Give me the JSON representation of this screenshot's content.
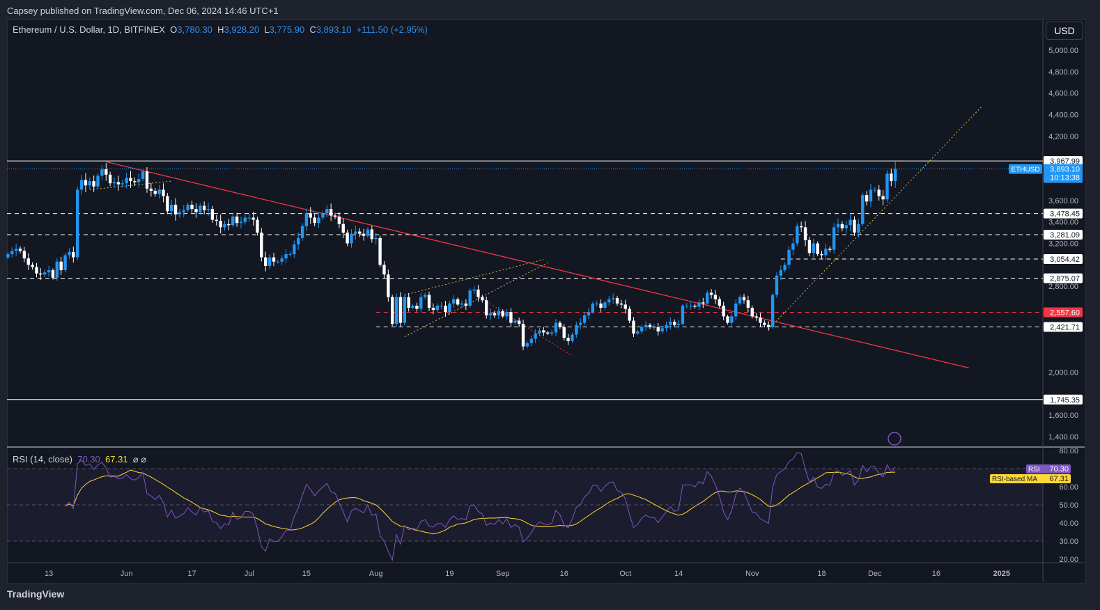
{
  "published": "Capsey published on TradingView.com, Dec 06, 2024 14:46 UTC+1",
  "legend": {
    "symbol": "Ethereum / U.S. Dollar, 1D, BITFINEX",
    "o_label": "O",
    "o": "3,780.30",
    "h_label": "H",
    "h": "3,928.20",
    "l_label": "L",
    "l": "3,775.90",
    "c_label": "C",
    "c": "3,893.10",
    "change": "+111.50 (+2.95%)"
  },
  "currency_button": "USD",
  "rsi_legend": {
    "title": "RSI (14, close)",
    "rsi": "70.30",
    "ma": "67.31",
    "icons": "⌀ ⌀"
  },
  "footer": "TradingView",
  "chart_data": {
    "type": "candlestick",
    "x_range": [
      "2024-05-03",
      "2024-12-06"
    ],
    "closes": [
      3100,
      3130,
      3150,
      3130,
      3060,
      3000,
      2980,
      2920,
      2910,
      2930,
      2950,
      2880,
      3030,
      2950,
      3090,
      3120,
      3070,
      3700,
      3790,
      3740,
      3780,
      3730,
      3830,
      3890,
      3840,
      3760,
      3770,
      3750,
      3760,
      3810,
      3780,
      3770,
      3800,
      3870,
      3710,
      3690,
      3660,
      3700,
      3640,
      3500,
      3560,
      3470,
      3490,
      3510,
      3560,
      3520,
      3490,
      3550,
      3510,
      3520,
      3420,
      3410,
      3350,
      3380,
      3370,
      3450,
      3390,
      3400,
      3440,
      3440,
      3420,
      3300,
      3070,
      2990,
      3070,
      3030,
      3030,
      3060,
      3100,
      3100,
      3190,
      3250,
      3360,
      3480,
      3440,
      3390,
      3440,
      3480,
      3520,
      3460,
      3450,
      3380,
      3300,
      3200,
      3290,
      3310,
      3290,
      3270,
      3330,
      3240,
      3250,
      3000,
      2910,
      2700,
      2450,
      2700,
      2460,
      2700,
      2600,
      2620,
      2590,
      2700,
      2720,
      2600,
      2580,
      2620,
      2620,
      2560,
      2640,
      2680,
      2630,
      2640,
      2620,
      2760,
      2770,
      2700,
      2670,
      2530,
      2550,
      2530,
      2570,
      2520,
      2560,
      2460,
      2480,
      2450,
      2240,
      2270,
      2310,
      2360,
      2390,
      2370,
      2360,
      2370,
      2460,
      2420,
      2320,
      2290,
      2350,
      2440,
      2460,
      2530,
      2560,
      2640,
      2640,
      2600,
      2650,
      2680,
      2690,
      2640,
      2630,
      2590,
      2480,
      2360,
      2380,
      2420,
      2440,
      2420,
      2420,
      2380,
      2410,
      2440,
      2470,
      2440,
      2450,
      2620,
      2620,
      2620,
      2610,
      2650,
      2640,
      2740,
      2720,
      2680,
      2620,
      2520,
      2460,
      2520,
      2640,
      2700,
      2670,
      2600,
      2520,
      2510,
      2460,
      2440,
      2420,
      2720,
      2900,
      2950,
      3000,
      3140,
      3200,
      3360,
      3350,
      3230,
      3110,
      3200,
      3100,
      3090,
      3150,
      3140,
      3350,
      3380,
      3340,
      3370,
      3420,
      3300,
      3380,
      3650,
      3590,
      3700,
      3700,
      3640,
      3610,
      3850,
      3780,
      3893.1
    ],
    "y_ticks": [
      "5,000.00",
      "4,800.00",
      "4,600.00",
      "4,400.00",
      "4,200.00",
      "3,600.00",
      "3,400.00",
      "3,200.00",
      "2,800.00",
      "2,000.00",
      "1,600.00",
      "1,400.00"
    ],
    "y_tick_values": [
      5000,
      4800,
      4600,
      4400,
      4200,
      3600,
      3400,
      3200,
      2800,
      2000,
      1600,
      1400
    ],
    "x_ticks": [
      {
        "d": "2024-05-13",
        "t": "13"
      },
      {
        "d": "2024-06-01",
        "t": "Jun"
      },
      {
        "d": "2024-06-17",
        "t": "17"
      },
      {
        "d": "2024-07-01",
        "t": "Jul"
      },
      {
        "d": "2024-07-15",
        "t": "15"
      },
      {
        "d": "2024-08-01",
        "t": "Aug"
      },
      {
        "d": "2024-08-19",
        "t": "19"
      },
      {
        "d": "2024-09-01",
        "t": "Sep"
      },
      {
        "d": "2024-09-16",
        "t": "16"
      },
      {
        "d": "2024-10-01",
        "t": "Oct"
      },
      {
        "d": "2024-10-14",
        "t": "14"
      },
      {
        "d": "2024-11-01",
        "t": "Nov"
      },
      {
        "d": "2024-11-18",
        "t": "18"
      },
      {
        "d": "2024-12-01",
        "t": "Dec"
      },
      {
        "d": "2024-12-16",
        "t": "16"
      },
      {
        "d": "2025-01-01",
        "t": "2025"
      }
    ],
    "levels": [
      {
        "price": 3967.99,
        "label": "3,967.99",
        "style": "solid",
        "color": "#ffffff"
      },
      {
        "price": 3478.45,
        "label": "3,478.45",
        "style": "dashed",
        "color": "#ffffff"
      },
      {
        "price": 3281.09,
        "label": "3,281.09",
        "style": "dashed",
        "color": "#ffffff"
      },
      {
        "price": 3054.42,
        "label": "3,054.42",
        "style": "dashed",
        "color": "#ffffff",
        "from": "2024-11-08"
      },
      {
        "price": 2875.07,
        "label": "2,875.07",
        "style": "dashed",
        "color": "#ffffff"
      },
      {
        "price": 2557.6,
        "label": "2,557.60",
        "style": "dashed",
        "color": "#f23645",
        "from": "2024-08-01"
      },
      {
        "price": 2421.71,
        "label": "2,421.71",
        "style": "dashed",
        "color": "#ffffff",
        "from": "2024-08-01"
      },
      {
        "price": 1745.35,
        "label": "1,745.35",
        "style": "solid",
        "color": "#ffffff"
      }
    ],
    "last_price": {
      "symbol": "ETHUSD",
      "price": 3893.1,
      "label": "3,893.10",
      "countdown": "10:13:38",
      "color": "#2196f3"
    },
    "trendlines": [
      {
        "from": [
          "2024-05-27",
          3960
        ],
        "to": [
          "2024-12-24",
          2040
        ],
        "color": "#f23645",
        "style": "solid"
      },
      {
        "from": [
          "2024-05-23",
          3700
        ],
        "to": [
          "2024-06-12",
          3780
        ],
        "color": "#c8c84a",
        "style": "dotted"
      },
      {
        "from": [
          "2024-08-08",
          2330
        ],
        "to": [
          "2024-09-12",
          3020
        ],
        "color": "#c8c84a",
        "style": "dotted"
      },
      {
        "from": [
          "2024-08-08",
          2720
        ],
        "to": [
          "2024-09-11",
          3050
        ],
        "color": "#c8c84a",
        "style": "dotted"
      },
      {
        "from": [
          "2024-08-26",
          2710
        ],
        "to": [
          "2024-09-18",
          2150
        ],
        "color": "#f23645",
        "style": "dotted"
      },
      {
        "from": [
          "2024-11-05",
          2400
        ],
        "to": [
          "2024-12-27",
          4470
        ],
        "color": "#c8c84a",
        "style": "dotted"
      }
    ],
    "rsi": {
      "period": 14,
      "ma_period": 14,
      "y_ticks": [
        "80.00",
        "60.00",
        "50.00",
        "40.00",
        "30.00",
        "20.00"
      ],
      "y_tick_values": [
        80,
        60,
        50,
        40,
        30,
        20
      ],
      "bands": [
        70,
        50,
        30
      ],
      "rsi_label": "RSI",
      "rsi_value": "70.30",
      "ma_label": "RSI-based MA",
      "ma_value": "67.31",
      "rsi_color": "#7e57c2",
      "ma_color": "#fdd835"
    },
    "colors": {
      "up": "#2196f3",
      "down": "#ffffff"
    }
  }
}
